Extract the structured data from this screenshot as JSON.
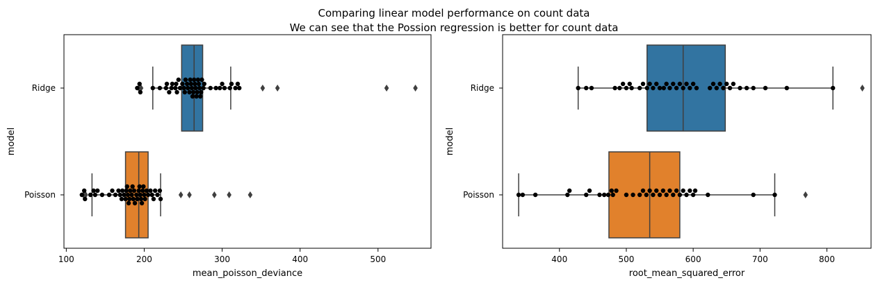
{
  "title_line1": "Comparing linear model performance on count data",
  "title_line2": "We can see that the Possion regression is better for count data",
  "colors": {
    "ridge": "#3274a1",
    "poisson": "#e1812c",
    "edge": "#3f3f3f",
    "point": "#000000"
  },
  "chart_data": [
    {
      "type": "box",
      "orientation": "horizontal",
      "xlabel": "mean_poisson_deviance",
      "ylabel": "model",
      "xlim": [
        97,
        568
      ],
      "xticks": [
        100,
        200,
        300,
        400,
        500
      ],
      "categories": [
        "Ridge",
        "Poisson"
      ],
      "boxes": [
        {
          "name": "Ridge",
          "whislo": 211,
          "q1": 248,
          "med": 264,
          "q3": 275,
          "whishi": 311,
          "fliers": [
            193,
            196,
            352,
            371,
            511,
            548
          ],
          "swarm": [
            191,
            194,
            195,
            211,
            220,
            228,
            229,
            232,
            235,
            236,
            240,
            241,
            242,
            244,
            246,
            249,
            251,
            252,
            253,
            255,
            256,
            258,
            259,
            260,
            261,
            262,
            263,
            264,
            265,
            266,
            267,
            268,
            269,
            270,
            271,
            272,
            273,
            274,
            276,
            277,
            285,
            292,
            297,
            300,
            303,
            310,
            312,
            317,
            320,
            322
          ]
        },
        {
          "name": "Poisson",
          "whislo": 133,
          "q1": 176,
          "med": 193,
          "q3": 205,
          "whishi": 221,
          "fliers": [
            122,
            125,
            247,
            258,
            290,
            309,
            336
          ],
          "swarm": [
            120,
            123,
            124,
            131,
            135,
            137,
            140,
            146,
            155,
            159,
            163,
            167,
            169,
            171,
            172,
            174,
            176,
            177,
            178,
            179,
            180,
            181,
            182,
            184,
            185,
            186,
            187,
            188,
            190,
            191,
            193,
            194,
            195,
            196,
            197,
            198,
            199,
            200,
            201,
            203,
            205,
            208,
            210,
            212,
            214,
            217,
            220,
            221
          ]
        }
      ]
    },
    {
      "type": "box",
      "orientation": "horizontal",
      "xlabel": "root_mean_squared_error",
      "ylabel": "model",
      "xlim": [
        315,
        866
      ],
      "xticks": [
        400,
        500,
        600,
        700,
        800
      ],
      "categories": [
        "Ridge",
        "Poisson"
      ],
      "boxes": [
        {
          "name": "Ridge",
          "whislo": 428,
          "q1": 531,
          "med": 585,
          "q3": 648,
          "whishi": 809,
          "fliers": [
            853
          ],
          "swarm": [
            428,
            440,
            448,
            483,
            490,
            495,
            500,
            505,
            508,
            520,
            525,
            531,
            535,
            540,
            545,
            550,
            556,
            560,
            565,
            570,
            575,
            580,
            585,
            590,
            595,
            600,
            605,
            625,
            630,
            635,
            640,
            645,
            650,
            655,
            660,
            670,
            680,
            690,
            708,
            740,
            809
          ]
        },
        {
          "name": "Poisson",
          "whislo": 339,
          "q1": 474,
          "med": 535,
          "q3": 580,
          "whishi": 722,
          "fliers": [
            768
          ],
          "swarm": [
            339,
            345,
            364,
            412,
            415,
            440,
            445,
            460,
            467,
            473,
            478,
            480,
            485,
            500,
            510,
            520,
            525,
            530,
            535,
            540,
            545,
            550,
            555,
            560,
            565,
            570,
            575,
            580,
            585,
            590,
            595,
            600,
            603,
            622,
            690,
            722
          ]
        }
      ]
    }
  ]
}
